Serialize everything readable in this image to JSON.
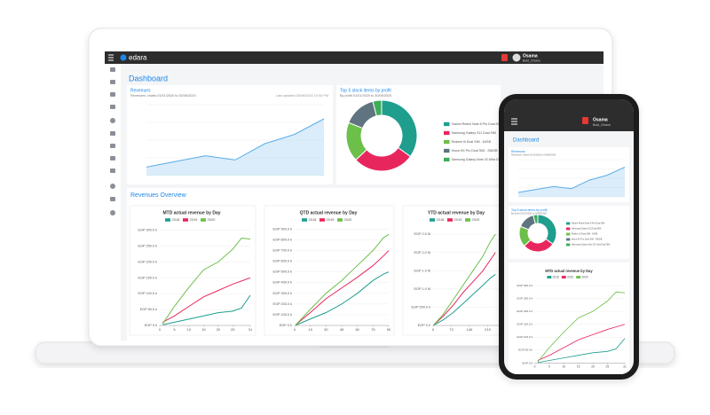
{
  "app": {
    "brand": "edara",
    "user": "Osama",
    "role": "Bold_Choice",
    "page_title": "Dashboard"
  },
  "revenues": {
    "title": "Revenues",
    "subtitle": "Revenues' charts 01/01/2020 to 30/06/2020",
    "updated": "Last updated 30/06/2020 10:44 PM",
    "values": [
      12,
      20,
      28,
      22,
      45,
      58,
      80
    ],
    "ylim": [
      0,
      100
    ],
    "color": "#5aaee8"
  },
  "top5": {
    "title": "Top 5 stock items by profit",
    "subtitle": "By profit 01/01/2020 to 30/06/2020",
    "labels": [
      "Xiaomi Redmi Note 8 Pro Dual SIM",
      "Samsung Galaxy S11 Dual SIM",
      "Realme 6i Dual SIM - 64GB",
      "Honor 8X Pro Dual SIM - 256GB",
      "Samsung Galaxy Note 20 Ultra Dual SIM"
    ],
    "values": [
      35,
      28,
      18,
      15,
      4
    ],
    "colors": [
      "#1f9e8e",
      "#e8265e",
      "#6cc04a",
      "#5f7480",
      "#3cae5a"
    ]
  },
  "overview": {
    "title": "Revenues Overview",
    "charts": [
      {
        "type": "line",
        "title": "MTD actual revenue by Day",
        "x": [
          1,
          5,
          10,
          15,
          20,
          25,
          28,
          31
        ],
        "xlim": [
          0,
          31
        ],
        "xticks": [
          0,
          5,
          10,
          15,
          20,
          25,
          31
        ],
        "ylim": [
          0,
          310000
        ],
        "yticks": [
          {
            "value": 0,
            "label": "EGP 0.0"
          },
          {
            "value": 50000,
            "label": "EGP 50.0 k"
          },
          {
            "value": 100000,
            "label": "EGP 100.0 k"
          },
          {
            "value": 150000,
            "label": "EGP 150.0 k"
          },
          {
            "value": 200000,
            "label": "EGP 200.0 k"
          },
          {
            "value": 250000,
            "label": "EGP 250.0 k"
          },
          {
            "value": 300000,
            "label": "EGP 300.0 k"
          }
        ],
        "series": [
          {
            "name": "2018",
            "color": "#1f9e8e",
            "values": [
              2000,
              10000,
              20000,
              30000,
              40000,
              45000,
              55000,
              95000
            ]
          },
          {
            "name": "2019",
            "color": "#e8265e",
            "values": [
              10000,
              30000,
              60000,
              90000,
              110000,
              130000,
              140000,
              150000
            ]
          },
          {
            "name": "2020",
            "color": "#6cc04a",
            "values": [
              5000,
              60000,
              120000,
              175000,
              200000,
              240000,
              275000,
              272000
            ]
          }
        ]
      },
      {
        "type": "line",
        "title": "QTD actual revenue by Day",
        "x": [
          1,
          15,
          30,
          45,
          60,
          75,
          85,
          90
        ],
        "xlim": [
          0,
          90
        ],
        "xticks": [
          0,
          15,
          30,
          45,
          60,
          75,
          90
        ],
        "ylim": [
          0,
          920000
        ],
        "yticks": [
          {
            "value": 0,
            "label": "EGP 0.0"
          },
          {
            "value": 100000,
            "label": "EGP 100.0 k"
          },
          {
            "value": 200000,
            "label": "EGP 200.0 k"
          },
          {
            "value": 300000,
            "label": "EGP 300.0 k"
          },
          {
            "value": 400000,
            "label": "EGP 400.0 k"
          },
          {
            "value": 500000,
            "label": "EGP 500.0 k"
          },
          {
            "value": 600000,
            "label": "EGP 600.0 k"
          },
          {
            "value": 700000,
            "label": "EGP 700.0 k"
          },
          {
            "value": 800000,
            "label": "EGP 800.0 k"
          },
          {
            "value": 900000,
            "label": "EGP 900.0 k"
          }
        ],
        "series": [
          {
            "name": "2018",
            "color": "#1f9e8e",
            "values": [
              2000,
              60000,
              120000,
              200000,
              300000,
              420000,
              480000,
              500000
            ]
          },
          {
            "name": "2019",
            "color": "#e8265e",
            "values": [
              5000,
              120000,
              250000,
              350000,
              450000,
              560000,
              650000,
              700000
            ]
          },
          {
            "name": "2020",
            "color": "#6cc04a",
            "values": [
              5000,
              150000,
              300000,
              420000,
              560000,
              700000,
              820000,
              850000
            ]
          }
        ]
      },
      {
        "type": "line",
        "title": "YTD actual revenue by Day",
        "x": [
          1,
          40,
          80,
          120,
          160,
          200,
          230,
          250
        ],
        "xlim": [
          0,
          292
        ],
        "xticks": [
          0,
          73,
          146,
          219
        ],
        "ylim": [
          0,
          2700000
        ],
        "yticks": [
          {
            "value": 0,
            "label": "EGP 0.0"
          },
          {
            "value": 500000,
            "label": "EGP 500.0 k"
          },
          {
            "value": 1000000,
            "label": "EGP 1.0 M"
          },
          {
            "value": 1500000,
            "label": "EGP 1.5 M"
          },
          {
            "value": 2000000,
            "label": "EGP 2.0 M"
          },
          {
            "value": 2500000,
            "label": "EGP 2.5 M"
          }
        ],
        "series": [
          {
            "name": "2018",
            "color": "#1f9e8e",
            "values": [
              2000,
              150000,
              350000,
              600000,
              850000,
              1100000,
              1300000,
              1400000
            ]
          },
          {
            "name": "2019",
            "color": "#e8265e",
            "values": [
              5000,
              250000,
              550000,
              900000,
              1200000,
              1500000,
              1800000,
              2000000
            ]
          },
          {
            "name": "2020",
            "color": "#6cc04a",
            "values": [
              5000,
              300000,
              700000,
              1100000,
              1500000,
              1900000,
              2300000,
              2500000
            ]
          }
        ]
      }
    ]
  }
}
